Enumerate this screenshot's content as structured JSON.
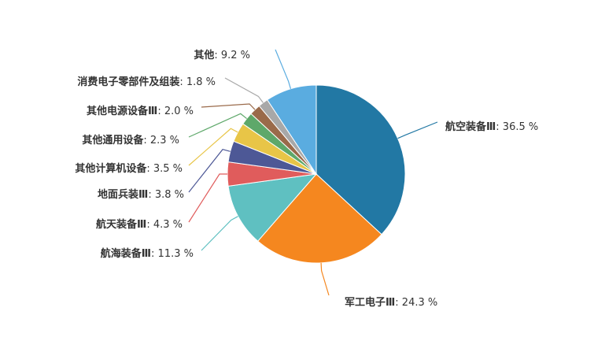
{
  "chart_data": {
    "type": "pie",
    "title": "",
    "unit": "%",
    "slices": [
      {
        "name": "航空装备Ⅲ",
        "value": 36.5,
        "color": "#2278a4"
      },
      {
        "name": "军工电子Ⅲ",
        "value": 24.3,
        "color": "#f5871f"
      },
      {
        "name": "航海装备Ⅲ",
        "value": 11.3,
        "color": "#5fc0c1"
      },
      {
        "name": "航天装备Ⅲ",
        "value": 4.3,
        "color": "#e05c5c"
      },
      {
        "name": "地面兵装Ⅲ",
        "value": 3.8,
        "color": "#4d5896"
      },
      {
        "name": "其他计算机设备",
        "value": 3.5,
        "color": "#e8c547"
      },
      {
        "name": "其他通用设备",
        "value": 2.3,
        "color": "#5ea86a"
      },
      {
        "name": "其他电源设备Ⅲ",
        "value": 2.0,
        "color": "#9a6a4a"
      },
      {
        "name": "消费电子零部件及组装",
        "value": 1.8,
        "color": "#a8a8a8"
      },
      {
        "name": "其他",
        "value": 9.2,
        "color": "#5aace0"
      }
    ],
    "purple_sliver_color": "#8a5fc0"
  }
}
